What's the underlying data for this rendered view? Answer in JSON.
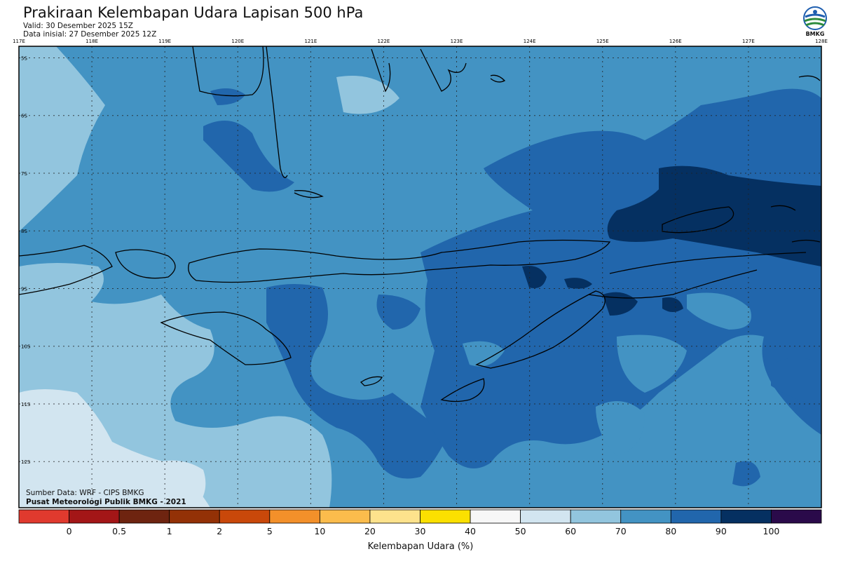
{
  "header": {
    "title": "Prakiraan Kelembapan Udara Lapisan 500 hPa",
    "valid": "Valid: 30 Desember 2025 15Z",
    "initial": "Data inisial: 27 Desember 2025 12Z",
    "logo_text": "BMKG"
  },
  "map": {
    "lon_ticks": [
      "117E",
      "118E",
      "119E",
      "120E",
      "121E",
      "122E",
      "123E",
      "124E",
      "125E",
      "126E",
      "127E",
      "128E"
    ],
    "lat_ticks": [
      "5S",
      "6S",
      "7S",
      "8S",
      "9S",
      "10S",
      "11S",
      "12S"
    ],
    "lon_range": [
      117,
      128
    ],
    "lat_range": [
      4.8,
      12.8
    ],
    "grid": true
  },
  "credits": {
    "source": "Sumber Data: WRF - CIPS BMKG",
    "center": "Pusat Meteorologi Publik BMKG - 2021"
  },
  "colorbar": {
    "title": "Kelembapan Udara (%)",
    "labels": [
      "0",
      "0.5",
      "1",
      "2",
      "5",
      "10",
      "20",
      "30",
      "40",
      "50",
      "60",
      "70",
      "80",
      "90",
      "100"
    ],
    "colors": [
      "#e03a2e",
      "#a31617",
      "#6e2410",
      "#933106",
      "#c9480a",
      "#f3902a",
      "#fbbc4c",
      "#fde28c",
      "#fbe000",
      "#f7f7f7",
      "#d2e5f0",
      "#92c5de",
      "#4393c3",
      "#2166ac",
      "#053061",
      "#2a0a4a"
    ]
  },
  "colors": {
    "level_50_60": "#d2e5f0",
    "level_60_70": "#92c5de",
    "level_70_80": "#4393c3",
    "level_80_90": "#2166ac",
    "level_90_100": "#053061"
  }
}
